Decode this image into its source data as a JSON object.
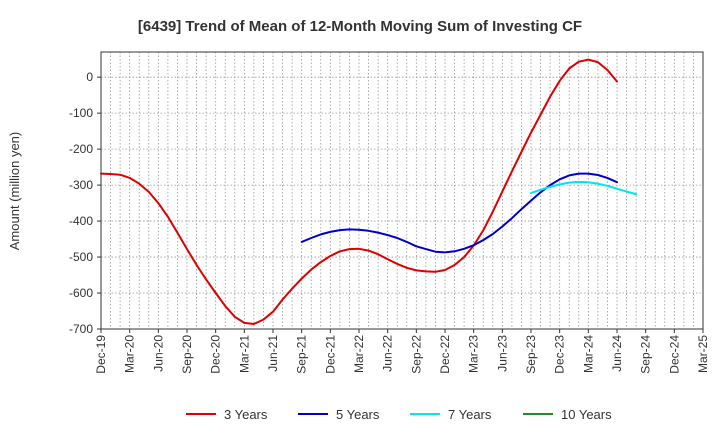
{
  "chart_data": {
    "type": "line",
    "title": "[6439]  Trend of Mean of 12-Month Moving Sum of Investing CF",
    "xlabel": "",
    "ylabel": "Amount (million yen)",
    "ylim": [
      -700,
      70
    ],
    "yticks": [
      0,
      -100,
      -200,
      -300,
      -400,
      -500,
      -600,
      -700
    ],
    "x_tick_labels": [
      "Dec-19",
      "Mar-20",
      "Jun-20",
      "Sep-20",
      "Dec-20",
      "Mar-21",
      "Jun-21",
      "Sep-21",
      "Dec-21",
      "Mar-22",
      "Jun-22",
      "Sep-22",
      "Dec-22",
      "Mar-23",
      "Jun-23",
      "Sep-23",
      "Dec-23",
      "Mar-24",
      "Jun-24",
      "Sep-24",
      "Dec-24",
      "Mar-25"
    ],
    "x_start": "Dec-19",
    "x_unit": "month",
    "grid": true,
    "legend_position": "bottom",
    "series": [
      {
        "name": "3 Years",
        "color": "#dd0000",
        "start_month_index": 0,
        "values": [
          -268,
          -269,
          -271,
          -280,
          -296,
          -319,
          -350,
          -388,
          -432,
          -478,
          -522,
          -562,
          -600,
          -636,
          -666,
          -683,
          -686,
          -674,
          -652,
          -618,
          -588,
          -560,
          -535,
          -514,
          -497,
          -484,
          -478,
          -477,
          -482,
          -492,
          -506,
          -519,
          -530,
          -537,
          -540,
          -541,
          -536,
          -522,
          -500,
          -468,
          -426,
          -374,
          -318,
          -262,
          -208,
          -154,
          -104,
          -54,
          -10,
          24,
          43,
          49,
          42,
          20,
          -12
        ]
      },
      {
        "name": "5 Years",
        "color": "#0000cc",
        "start_month_index": 21,
        "values": [
          -458,
          -447,
          -437,
          -430,
          -425,
          -423,
          -424,
          -427,
          -432,
          -439,
          -447,
          -458,
          -470,
          -478,
          -485,
          -487,
          -484,
          -477,
          -467,
          -453,
          -436,
          -415,
          -392,
          -367,
          -343,
          -320,
          -300,
          -284,
          -273,
          -268,
          -268,
          -272,
          -280,
          -292
        ]
      },
      {
        "name": "7 Years",
        "color": "#00e5ee",
        "start_month_index": 45,
        "values": [
          -322,
          -313,
          -305,
          -298,
          -293,
          -291,
          -292,
          -296,
          -302,
          -310,
          -318,
          -325
        ]
      },
      {
        "name": "10 Years",
        "color": "#228b22",
        "start_month_index": 0,
        "values": []
      }
    ]
  }
}
